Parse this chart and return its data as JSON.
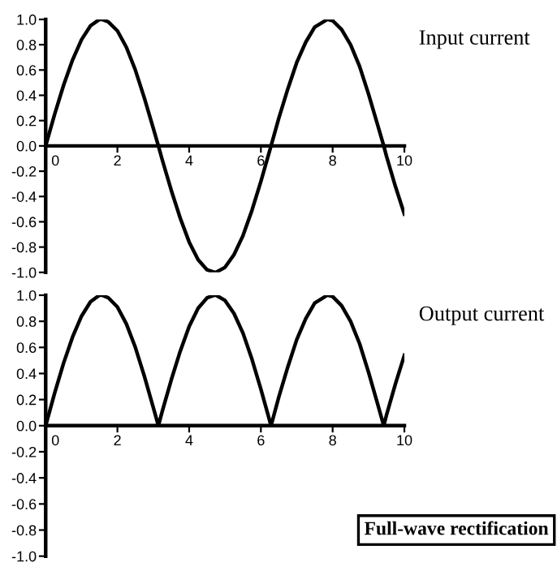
{
  "chart_data": [
    {
      "type": "line",
      "title": "Input current",
      "x": [
        0,
        0.25,
        0.5,
        0.75,
        1,
        1.25,
        1.5,
        1.571,
        1.75,
        2,
        2.25,
        2.5,
        2.75,
        3,
        3.142,
        3.25,
        3.5,
        3.75,
        4,
        4.25,
        4.5,
        4.712,
        4.75,
        5,
        5.25,
        5.5,
        5.75,
        6,
        6.283,
        6.5,
        6.75,
        7,
        7.25,
        7.5,
        7.854,
        8,
        8.25,
        8.5,
        8.75,
        9,
        9.25,
        9.425,
        9.5,
        9.75,
        10
      ],
      "series": [
        {
          "color": "#000000",
          "values": [
            0,
            0.25,
            0.48,
            0.68,
            0.84,
            0.95,
            1.0,
            1.0,
            0.98,
            0.91,
            0.78,
            0.6,
            0.38,
            0.14,
            0,
            -0.11,
            -0.35,
            -0.57,
            -0.76,
            -0.9,
            -0.98,
            -1.0,
            -1.0,
            -0.96,
            -0.86,
            -0.71,
            -0.51,
            -0.28,
            0,
            0.22,
            0.45,
            0.66,
            0.82,
            0.94,
            1.0,
            0.99,
            0.92,
            0.8,
            0.63,
            0.41,
            0.17,
            0,
            -0.08,
            -0.32,
            -0.54
          ]
        }
      ],
      "xlim": [
        0,
        10
      ],
      "xticks": [
        0,
        2,
        4,
        6,
        8,
        10
      ],
      "ylim": [
        -1,
        1
      ],
      "yticks": [
        {
          "value": 1,
          "label": "1.0"
        },
        {
          "value": 0.8,
          "label": "0.8"
        },
        {
          "value": 0.6,
          "label": "0.6"
        },
        {
          "value": 0.4,
          "label": "0.4"
        },
        {
          "value": 0.2,
          "label": "0.2"
        },
        {
          "value": 0,
          "label": "0.0"
        },
        {
          "value": -0.2,
          "label": "-0.2"
        },
        {
          "value": -0.4,
          "label": "-0.4"
        },
        {
          "value": -0.6,
          "label": "-0.6"
        },
        {
          "value": -0.8,
          "label": "-0.8"
        },
        {
          "value": -1,
          "label": "-1.0"
        }
      ],
      "grid": false,
      "legend": false
    },
    {
      "type": "line",
      "title": "Output current",
      "annotations": [
        "Full-wave rectification"
      ],
      "x": [
        0,
        0.25,
        0.5,
        0.75,
        1,
        1.25,
        1.5,
        1.571,
        1.75,
        2,
        2.25,
        2.5,
        2.75,
        3,
        3.142,
        3.25,
        3.5,
        3.75,
        4,
        4.25,
        4.5,
        4.712,
        4.75,
        5,
        5.25,
        5.5,
        5.75,
        6,
        6.283,
        6.5,
        6.75,
        7,
        7.25,
        7.5,
        7.854,
        8,
        8.25,
        8.5,
        8.75,
        9,
        9.25,
        9.425,
        9.5,
        9.75,
        10
      ],
      "series": [
        {
          "color": "#000000",
          "values": [
            0,
            0.25,
            0.48,
            0.68,
            0.84,
            0.95,
            1.0,
            1.0,
            0.98,
            0.91,
            0.78,
            0.6,
            0.38,
            0.14,
            0,
            0.11,
            0.35,
            0.57,
            0.76,
            0.9,
            0.98,
            1.0,
            1.0,
            0.96,
            0.86,
            0.71,
            0.51,
            0.28,
            0,
            0.22,
            0.45,
            0.66,
            0.82,
            0.94,
            1.0,
            0.99,
            0.92,
            0.8,
            0.63,
            0.41,
            0.17,
            0,
            0.08,
            0.32,
            0.54
          ]
        }
      ],
      "xlim": [
        0,
        10
      ],
      "xticks": [
        0,
        2,
        4,
        6,
        8,
        10
      ],
      "ylim": [
        -1,
        1
      ],
      "yticks": [
        {
          "value": 1,
          "label": "1.0"
        },
        {
          "value": 0.8,
          "label": "0.8"
        },
        {
          "value": 0.6,
          "label": "0.6"
        },
        {
          "value": 0.4,
          "label": "0.4"
        },
        {
          "value": 0.2,
          "label": "0.2"
        },
        {
          "value": 0,
          "label": "0.0"
        },
        {
          "value": -0.2,
          "label": "-0.2"
        },
        {
          "value": -0.4,
          "label": "-0.4"
        },
        {
          "value": -0.6,
          "label": "-0.6"
        },
        {
          "value": -0.8,
          "label": "-0.8"
        },
        {
          "value": -1,
          "label": "-1.0"
        }
      ],
      "grid": false,
      "legend": false
    }
  ]
}
